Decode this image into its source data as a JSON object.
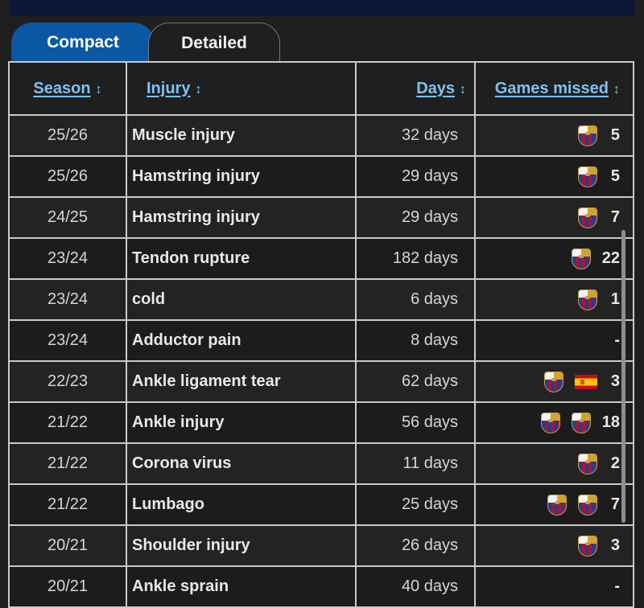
{
  "tabs": {
    "compact": "Compact",
    "detailed": "Detailed"
  },
  "headers": {
    "season": "Season",
    "injury": "Injury",
    "days": "Days",
    "games_missed": "Games missed",
    "sort_glyph": "↕"
  },
  "rows": [
    {
      "season": "25/26",
      "injury": "Muscle injury",
      "days": "32 days",
      "clubs": [
        "fc-barcelona-crest-icon"
      ],
      "games": "5"
    },
    {
      "season": "25/26",
      "injury": "Hamstring injury",
      "days": "29 days",
      "clubs": [
        "fc-barcelona-crest-icon"
      ],
      "games": "5"
    },
    {
      "season": "24/25",
      "injury": "Hamstring injury",
      "days": "29 days",
      "clubs": [
        "fc-barcelona-crest-icon"
      ],
      "games": "7"
    },
    {
      "season": "23/24",
      "injury": "Tendon rupture",
      "days": "182 days",
      "clubs": [
        "fc-barcelona-crest-icon"
      ],
      "games": "22"
    },
    {
      "season": "23/24",
      "injury": "cold",
      "days": "6 days",
      "clubs": [
        "fc-barcelona-crest-icon"
      ],
      "games": "1"
    },
    {
      "season": "23/24",
      "injury": "Adductor pain",
      "days": "8 days",
      "clubs": [],
      "games": "-"
    },
    {
      "season": "22/23",
      "injury": "Ankle ligament tear",
      "days": "62 days",
      "clubs": [
        "fc-barcelona-crest-icon",
        "spain-flag-icon"
      ],
      "games": "3"
    },
    {
      "season": "21/22",
      "injury": "Ankle injury",
      "days": "56 days",
      "clubs": [
        "fc-barcelona-crest-icon",
        "fc-barcelona-crest-icon"
      ],
      "games": "18"
    },
    {
      "season": "21/22",
      "injury": "Corona virus",
      "days": "11 days",
      "clubs": [
        "fc-barcelona-crest-icon"
      ],
      "games": "2"
    },
    {
      "season": "21/22",
      "injury": "Lumbago",
      "days": "25 days",
      "clubs": [
        "fc-barcelona-crest-icon",
        "fc-barcelona-crest-icon"
      ],
      "games": "7"
    },
    {
      "season": "20/21",
      "injury": "Shoulder injury",
      "days": "26 days",
      "clubs": [
        "fc-barcelona-crest-icon"
      ],
      "games": "3"
    },
    {
      "season": "20/21",
      "injury": "Ankle sprain",
      "days": "40 days",
      "clubs": [],
      "games": "-"
    }
  ],
  "colors": {
    "active_tab": "#0c57a4",
    "header_link": "#7ec2f0",
    "background": "#1f1f1f",
    "top_bar": "#0b1736"
  }
}
